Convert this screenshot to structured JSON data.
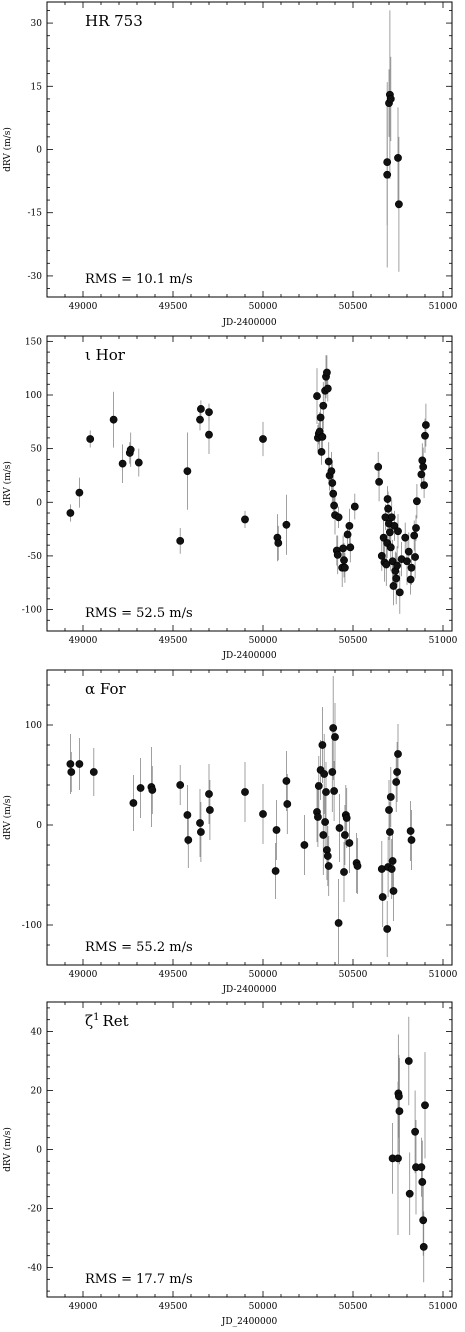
{
  "chart_data": [
    {
      "type": "scatter",
      "title": "HR 753",
      "annotation": "RMS = 10.1 m/s",
      "xlabel": "JD-2400000",
      "ylabel": "dRV (m/s)",
      "xlim": [
        48800,
        51050
      ],
      "ylim": [
        -35,
        35
      ],
      "xticks": [
        49000,
        49500,
        50000,
        50500,
        51000
      ],
      "yticks": [
        -30,
        -15,
        0,
        15,
        30
      ],
      "points": [
        {
          "x": 50690,
          "y": -6,
          "err": 22
        },
        {
          "x": 50690,
          "y": -3,
          "err": 15
        },
        {
          "x": 50700,
          "y": 11,
          "err": 8
        },
        {
          "x": 50705,
          "y": 13,
          "err": 20
        },
        {
          "x": 50710,
          "y": 12,
          "err": 10
        },
        {
          "x": 50750,
          "y": -2,
          "err": 12
        },
        {
          "x": 50755,
          "y": -13,
          "err": 16
        }
      ]
    },
    {
      "type": "scatter",
      "title": "ι Hor",
      "annotation": "RMS = 52.5 m/s",
      "xlabel": "JD-2400000",
      "ylabel": "dRV (m/s)",
      "xlim": [
        48800,
        51050
      ],
      "ylim": [
        -120,
        155
      ],
      "xticks": [
        49000,
        49500,
        50000,
        50500,
        51000
      ],
      "yticks": [
        -100,
        -50,
        0,
        50,
        100,
        150
      ],
      "points": [
        {
          "x": 48930,
          "y": -10,
          "err": 8
        },
        {
          "x": 48980,
          "y": 9,
          "err": 14
        },
        {
          "x": 49040,
          "y": 59,
          "err": 8
        },
        {
          "x": 49170,
          "y": 77,
          "err": 26
        },
        {
          "x": 49220,
          "y": 36,
          "err": 18
        },
        {
          "x": 49260,
          "y": 46,
          "err": 10
        },
        {
          "x": 49265,
          "y": 49,
          "err": 16
        },
        {
          "x": 49310,
          "y": 37,
          "err": 13
        },
        {
          "x": 49540,
          "y": -36,
          "err": 12
        },
        {
          "x": 49580,
          "y": 29,
          "err": 36
        },
        {
          "x": 49650,
          "y": 77,
          "err": 10
        },
        {
          "x": 49655,
          "y": 87,
          "err": 8
        },
        {
          "x": 49700,
          "y": 84,
          "err": 8
        },
        {
          "x": 49700,
          "y": 63,
          "err": 18
        },
        {
          "x": 49900,
          "y": -16,
          "err": 8
        },
        {
          "x": 50000,
          "y": 59,
          "err": 16
        },
        {
          "x": 50080,
          "y": -33,
          "err": 22
        },
        {
          "x": 50085,
          "y": -38,
          "err": 16
        },
        {
          "x": 50130,
          "y": -21,
          "err": 28
        },
        {
          "x": 50300,
          "y": 99,
          "err": 26
        },
        {
          "x": 50305,
          "y": 60,
          "err": 12
        },
        {
          "x": 50310,
          "y": 64,
          "err": 10
        },
        {
          "x": 50315,
          "y": 66,
          "err": 18
        },
        {
          "x": 50320,
          "y": 79,
          "err": 14
        },
        {
          "x": 50325,
          "y": 47,
          "err": 12
        },
        {
          "x": 50330,
          "y": 61,
          "err": 16
        },
        {
          "x": 50335,
          "y": 90,
          "err": 22
        },
        {
          "x": 50345,
          "y": 104,
          "err": 14
        },
        {
          "x": 50350,
          "y": 117,
          "err": 20
        },
        {
          "x": 50355,
          "y": 121,
          "err": 16
        },
        {
          "x": 50360,
          "y": 106,
          "err": 12
        },
        {
          "x": 50365,
          "y": 38,
          "err": 18
        },
        {
          "x": 50370,
          "y": 25,
          "err": 14
        },
        {
          "x": 50380,
          "y": 29,
          "err": 18
        },
        {
          "x": 50385,
          "y": 18,
          "err": 20
        },
        {
          "x": 50390,
          "y": 8,
          "err": 16
        },
        {
          "x": 50395,
          "y": -3,
          "err": 12
        },
        {
          "x": 50400,
          "y": -12,
          "err": 18
        },
        {
          "x": 50410,
          "y": -45,
          "err": 14
        },
        {
          "x": 50415,
          "y": -49,
          "err": 18
        },
        {
          "x": 50420,
          "y": -14,
          "err": 10
        },
        {
          "x": 50440,
          "y": -61,
          "err": 18
        },
        {
          "x": 50445,
          "y": -43,
          "err": 12
        },
        {
          "x": 50450,
          "y": -54,
          "err": 16
        },
        {
          "x": 50455,
          "y": -61,
          "err": 14
        },
        {
          "x": 50470,
          "y": -30,
          "err": 10
        },
        {
          "x": 50480,
          "y": -22,
          "err": 16
        },
        {
          "x": 50485,
          "y": -42,
          "err": 14
        },
        {
          "x": 50510,
          "y": -4,
          "err": 12
        },
        {
          "x": 50640,
          "y": 33,
          "err": 14
        },
        {
          "x": 50645,
          "y": 19,
          "err": 18
        },
        {
          "x": 50660,
          "y": -50,
          "err": 14
        },
        {
          "x": 50670,
          "y": -33,
          "err": 22
        },
        {
          "x": 50675,
          "y": -56,
          "err": 18
        },
        {
          "x": 50680,
          "y": -14,
          "err": 12
        },
        {
          "x": 50685,
          "y": -58,
          "err": 20
        },
        {
          "x": 50690,
          "y": -38,
          "err": 14
        },
        {
          "x": 50692,
          "y": 3,
          "err": 12
        },
        {
          "x": 50695,
          "y": -6,
          "err": 16
        },
        {
          "x": 50700,
          "y": -20,
          "err": 18
        },
        {
          "x": 50705,
          "y": -28,
          "err": 12
        },
        {
          "x": 50710,
          "y": -42,
          "err": 22
        },
        {
          "x": 50715,
          "y": -14,
          "err": 16
        },
        {
          "x": 50720,
          "y": -55,
          "err": 20
        },
        {
          "x": 50725,
          "y": -78,
          "err": 18
        },
        {
          "x": 50730,
          "y": -22,
          "err": 14
        },
        {
          "x": 50735,
          "y": -64,
          "err": 18
        },
        {
          "x": 50740,
          "y": -71,
          "err": 24
        },
        {
          "x": 50745,
          "y": -59,
          "err": 18
        },
        {
          "x": 50750,
          "y": -27,
          "err": 16
        },
        {
          "x": 50760,
          "y": -84,
          "err": 20
        },
        {
          "x": 50770,
          "y": -53,
          "err": 16
        },
        {
          "x": 50790,
          "y": -33,
          "err": 14
        },
        {
          "x": 50800,
          "y": -55,
          "err": 22
        },
        {
          "x": 50810,
          "y": -46,
          "err": 18
        },
        {
          "x": 50820,
          "y": -72,
          "err": 14
        },
        {
          "x": 50825,
          "y": -61,
          "err": 16
        },
        {
          "x": 50840,
          "y": -31,
          "err": 14
        },
        {
          "x": 50845,
          "y": -51,
          "err": 20
        },
        {
          "x": 50850,
          "y": -24,
          "err": 12
        },
        {
          "x": 50855,
          "y": 1,
          "err": 16
        },
        {
          "x": 50880,
          "y": 26,
          "err": 14
        },
        {
          "x": 50885,
          "y": 39,
          "err": 16
        },
        {
          "x": 50890,
          "y": 33,
          "err": 18
        },
        {
          "x": 50895,
          "y": 16,
          "err": 12
        },
        {
          "x": 50900,
          "y": 62,
          "err": 16
        },
        {
          "x": 50905,
          "y": 72,
          "err": 20
        }
      ]
    },
    {
      "type": "scatter",
      "title": "α For",
      "annotation": "RMS = 55.2 m/s",
      "xlabel": "JD-2400000",
      "ylabel": "dRV (m/s)",
      "xlim": [
        48800,
        51050
      ],
      "ylim": [
        -140,
        155
      ],
      "xticks": [
        49000,
        49500,
        50000,
        50500,
        51000
      ],
      "yticks": [
        -100,
        0,
        100
      ],
      "points": [
        {
          "x": 48930,
          "y": 61,
          "err": 30
        },
        {
          "x": 48935,
          "y": 53,
          "err": 20
        },
        {
          "x": 48980,
          "y": 61,
          "err": 26
        },
        {
          "x": 49060,
          "y": 53,
          "err": 24
        },
        {
          "x": 49280,
          "y": 22,
          "err": 28
        },
        {
          "x": 49320,
          "y": 37,
          "err": 30
        },
        {
          "x": 49380,
          "y": 38,
          "err": 40
        },
        {
          "x": 49385,
          "y": 35,
          "err": 24
        },
        {
          "x": 49540,
          "y": 40,
          "err": 20
        },
        {
          "x": 49580,
          "y": 10,
          "err": 30
        },
        {
          "x": 49585,
          "y": -15,
          "err": 28
        },
        {
          "x": 49650,
          "y": 2,
          "err": 34
        },
        {
          "x": 49655,
          "y": -7,
          "err": 30
        },
        {
          "x": 49700,
          "y": 31,
          "err": 30
        },
        {
          "x": 49705,
          "y": 15,
          "err": 30
        },
        {
          "x": 49900,
          "y": 33,
          "err": 30
        },
        {
          "x": 50000,
          "y": 11,
          "err": 30
        },
        {
          "x": 50070,
          "y": -46,
          "err": 28
        },
        {
          "x": 50075,
          "y": -5,
          "err": 30
        },
        {
          "x": 50130,
          "y": 44,
          "err": 30
        },
        {
          "x": 50135,
          "y": 21,
          "err": 30
        },
        {
          "x": 50230,
          "y": -20,
          "err": 30
        },
        {
          "x": 50300,
          "y": 13,
          "err": 30
        },
        {
          "x": 50305,
          "y": 8,
          "err": 30
        },
        {
          "x": 50310,
          "y": 39,
          "err": 30
        },
        {
          "x": 50320,
          "y": 55,
          "err": 30
        },
        {
          "x": 50330,
          "y": 80,
          "err": 38
        },
        {
          "x": 50335,
          "y": -10,
          "err": 40
        },
        {
          "x": 50340,
          "y": 51,
          "err": 40
        },
        {
          "x": 50345,
          "y": 3,
          "err": 30
        },
        {
          "x": 50350,
          "y": 33,
          "err": 30
        },
        {
          "x": 50355,
          "y": -25,
          "err": 30
        },
        {
          "x": 50360,
          "y": -31,
          "err": 30
        },
        {
          "x": 50365,
          "y": -41,
          "err": 30
        },
        {
          "x": 50385,
          "y": 53,
          "err": 40
        },
        {
          "x": 50390,
          "y": 97,
          "err": 52
        },
        {
          "x": 50395,
          "y": 34,
          "err": 30
        },
        {
          "x": 50400,
          "y": 88,
          "err": 34
        },
        {
          "x": 50420,
          "y": -98,
          "err": 44
        },
        {
          "x": 50425,
          "y": -3,
          "err": 34
        },
        {
          "x": 50450,
          "y": -47,
          "err": 30
        },
        {
          "x": 50455,
          "y": -10,
          "err": 30
        },
        {
          "x": 50460,
          "y": 10,
          "err": 30
        },
        {
          "x": 50465,
          "y": 7,
          "err": 30
        },
        {
          "x": 50480,
          "y": -18,
          "err": 30
        },
        {
          "x": 50520,
          "y": -38,
          "err": 30
        },
        {
          "x": 50525,
          "y": -41,
          "err": 28
        },
        {
          "x": 50660,
          "y": -44,
          "err": 28
        },
        {
          "x": 50665,
          "y": -72,
          "err": 30
        },
        {
          "x": 50690,
          "y": -104,
          "err": 28
        },
        {
          "x": 50695,
          "y": -42,
          "err": 30
        },
        {
          "x": 50700,
          "y": 15,
          "err": 30
        },
        {
          "x": 50705,
          "y": -7,
          "err": 30
        },
        {
          "x": 50710,
          "y": 28,
          "err": 30
        },
        {
          "x": 50715,
          "y": -44,
          "err": 30
        },
        {
          "x": 50720,
          "y": -36,
          "err": 28
        },
        {
          "x": 50725,
          "y": -66,
          "err": 30
        },
        {
          "x": 50740,
          "y": 43,
          "err": 30
        },
        {
          "x": 50745,
          "y": 53,
          "err": 30
        },
        {
          "x": 50750,
          "y": 71,
          "err": 30
        },
        {
          "x": 50820,
          "y": -6,
          "err": 30
        },
        {
          "x": 50825,
          "y": -15,
          "err": 30
        }
      ]
    },
    {
      "type": "scatter",
      "title": "ζ¹ Ret",
      "title_base": "ζ",
      "title_sup": "1",
      "title_rest": "Ret",
      "annotation": "RMS = 17.7 m/s",
      "xlabel": "JD_2400000",
      "ylabel": "dRV (m/s)",
      "xlim": [
        48800,
        51050
      ],
      "ylim": [
        -50,
        50
      ],
      "xticks": [
        49000,
        49500,
        50000,
        50500,
        51000
      ],
      "yticks": [
        -40,
        -20,
        0,
        20,
        40
      ],
      "points": [
        {
          "x": 50720,
          "y": -3,
          "err": 12
        },
        {
          "x": 50750,
          "y": -3,
          "err": 26
        },
        {
          "x": 50752,
          "y": 19,
          "err": 20
        },
        {
          "x": 50755,
          "y": 18,
          "err": 14
        },
        {
          "x": 50758,
          "y": 13,
          "err": 18
        },
        {
          "x": 50810,
          "y": 30,
          "err": 15
        },
        {
          "x": 50815,
          "y": -15,
          "err": 14
        },
        {
          "x": 50845,
          "y": 6,
          "err": 14
        },
        {
          "x": 50850,
          "y": -6,
          "err": 16
        },
        {
          "x": 50880,
          "y": -6,
          "err": 10
        },
        {
          "x": 50885,
          "y": -11,
          "err": 14
        },
        {
          "x": 50890,
          "y": -24,
          "err": 12
        },
        {
          "x": 50893,
          "y": -33,
          "err": 12
        },
        {
          "x": 50900,
          "y": 15,
          "err": 18
        }
      ]
    }
  ]
}
